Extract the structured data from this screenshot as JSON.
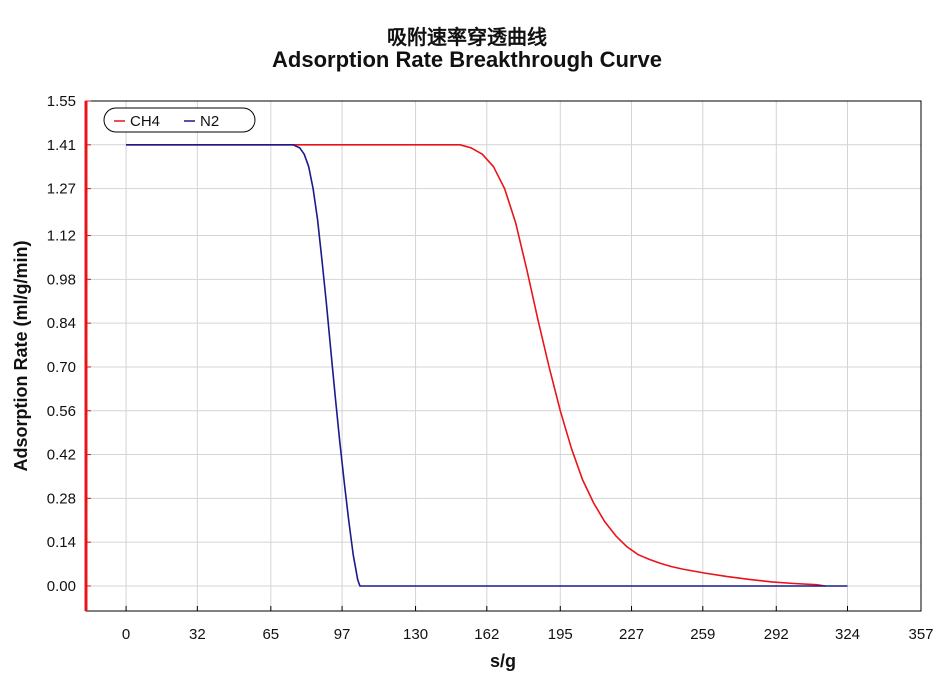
{
  "chart_data": {
    "type": "line",
    "title": "吸附速率穿透曲线",
    "subtitle": "Adsorption Rate Breakthrough Curve",
    "xlabel": "s/g",
    "ylabel": "Adsorption Rate (ml/g/min)",
    "xlim": [
      -18,
      357
    ],
    "ylim": [
      -0.08,
      1.55
    ],
    "x_ticks": [
      "0",
      "32",
      "65",
      "97",
      "130",
      "162",
      "195",
      "227",
      "259",
      "292",
      "324",
      "357"
    ],
    "y_ticks": [
      "1.55",
      "1.41",
      "1.27",
      "1.12",
      "0.98",
      "0.84",
      "0.70",
      "0.56",
      "0.42",
      "0.28",
      "0.14",
      "0.00"
    ],
    "grid": true,
    "legend_position": "top-left",
    "series": [
      {
        "name": "CH4",
        "color": "#e8141a",
        "x": [
          0,
          30,
          60,
          100,
          140,
          150,
          155,
          160,
          165,
          170,
          175,
          180,
          185,
          190,
          195,
          200,
          205,
          210,
          215,
          220,
          225,
          230,
          235,
          240,
          245,
          250,
          260,
          270,
          280,
          290,
          300,
          310,
          314
        ],
        "y": [
          1.41,
          1.41,
          1.41,
          1.41,
          1.41,
          1.41,
          1.4,
          1.38,
          1.34,
          1.27,
          1.16,
          1.01,
          0.85,
          0.7,
          0.56,
          0.44,
          0.34,
          0.265,
          0.205,
          0.16,
          0.125,
          0.1,
          0.085,
          0.072,
          0.062,
          0.054,
          0.041,
          0.03,
          0.021,
          0.013,
          0.008,
          0.004,
          0.0
        ]
      },
      {
        "name": "N2",
        "color": "#1a1a8c",
        "x": [
          0,
          30,
          60,
          75,
          78,
          80,
          82,
          84,
          86,
          88,
          90,
          92,
          94,
          96,
          98,
          100,
          102,
          104,
          105,
          130,
          200,
          260,
          324
        ],
        "y": [
          1.41,
          1.41,
          1.41,
          1.41,
          1.4,
          1.38,
          1.34,
          1.27,
          1.17,
          1.04,
          0.9,
          0.75,
          0.6,
          0.46,
          0.33,
          0.21,
          0.1,
          0.02,
          0.0,
          0.0,
          0.0,
          0.0,
          0.0
        ]
      }
    ]
  },
  "colors": {
    "left_axis": "#e8141a",
    "grid": "#d4d4d4",
    "frame": "#000000"
  }
}
